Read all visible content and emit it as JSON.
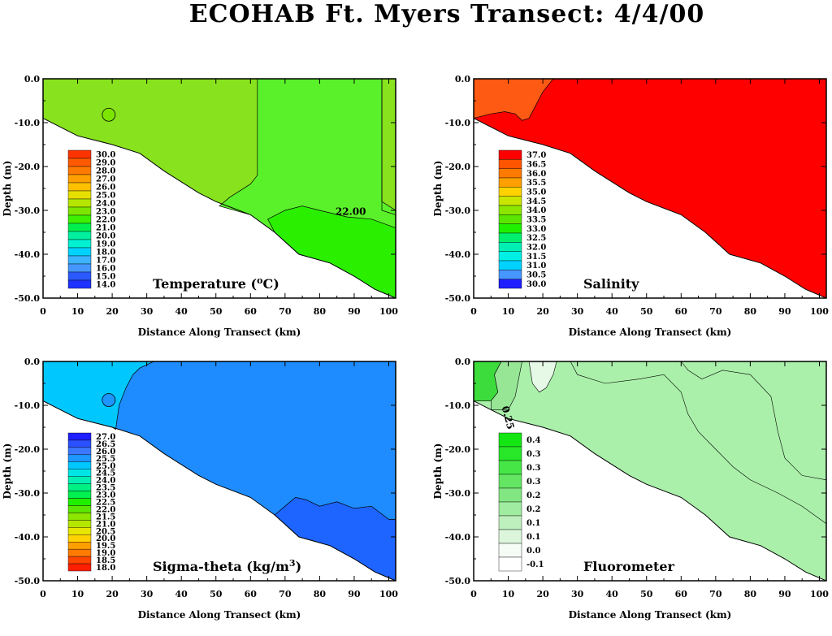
{
  "title": "ECOHAB Ft. Myers Transect: 4/4/00",
  "chart_data": [
    {
      "type": "heatmap",
      "panel_label_main": "Temperature (",
      "panel_label_sup": "o",
      "panel_label_tail": "C)",
      "xlabel": "Distance Along Transect (km)",
      "ylabel": "Depth (m)",
      "xlim": [
        0,
        102
      ],
      "ylim": [
        -50,
        0
      ],
      "xticks": [
        "0",
        "10",
        "20",
        "30",
        "40",
        "50",
        "60",
        "70",
        "80",
        "90",
        "100"
      ],
      "yticks": [
        "0.0",
        "-10.0",
        "-20.0",
        "-30.0",
        "-40.0",
        "-50.0"
      ],
      "legend_levels": [
        "30.0",
        "29.0",
        "28.0",
        "27.0",
        "26.0",
        "25.0",
        "24.0",
        "23.0",
        "22.0",
        "21.0",
        "20.0",
        "19.0",
        "18.0",
        "17.0",
        "16.0",
        "15.0",
        "14.0"
      ],
      "legend_colors": [
        "#ff3300",
        "#ff5a00",
        "#ff7a00",
        "#ffa000",
        "#ffc000",
        "#e6e000",
        "#b4e600",
        "#7ce600",
        "#3cf000",
        "#00f050",
        "#00f0a0",
        "#00f0d2",
        "#00d2ff",
        "#3cb4ff",
        "#4696ff",
        "#2a5aff",
        "#1e32ff"
      ],
      "contour_labels": [
        "22.00"
      ],
      "fill_colors": {
        "main": "#88e21e",
        "band": "#5af02a",
        "deep": "#2af000"
      }
    },
    {
      "type": "heatmap",
      "panel_label": "Salinity",
      "xlabel": "Distance Along Transect (km)",
      "ylabel": "Depth (m)",
      "xlim": [
        0,
        102
      ],
      "ylim": [
        -50,
        0
      ],
      "xticks": [
        "0",
        "10",
        "20",
        "30",
        "40",
        "50",
        "60",
        "70",
        "80",
        "90",
        "100"
      ],
      "yticks": [
        "0.0",
        "-10.0",
        "-20.0",
        "-30.0",
        "-40.0",
        "-50.0"
      ],
      "legend_levels": [
        "37.0",
        "36.5",
        "36.0",
        "35.5",
        "35.0",
        "34.5",
        "34.0",
        "33.5",
        "33.0",
        "32.5",
        "32.0",
        "31.5",
        "31.0",
        "30.5",
        "30.0"
      ],
      "legend_colors": [
        "#ff0000",
        "#ff5500",
        "#ff7a00",
        "#ffa000",
        "#ffd200",
        "#c8e600",
        "#8ce600",
        "#5ae600",
        "#1ef000",
        "#00f06e",
        "#00f0b4",
        "#00f0e6",
        "#00d2ff",
        "#4696ff",
        "#1e1eff"
      ],
      "contour_labels": [],
      "fill_colors": {
        "main": "#ff0000",
        "nearshore": "#ff5a14"
      }
    },
    {
      "type": "heatmap",
      "panel_label_main": "Sigma-theta  (kg/m",
      "panel_label_sup": "3",
      "panel_label_tail": ")",
      "xlabel": "Distance Along Transect (km)",
      "ylabel": "Depth (m)",
      "xlim": [
        0,
        102
      ],
      "ylim": [
        -50,
        0
      ],
      "xticks": [
        "0",
        "10",
        "20",
        "30",
        "40",
        "50",
        "60",
        "70",
        "80",
        "90",
        "100"
      ],
      "yticks": [
        "0.0",
        "-10.0",
        "-20.0",
        "-30.0",
        "-40.0",
        "-50.0"
      ],
      "legend_levels": [
        "27.0",
        "26.5",
        "26.0",
        "25.5",
        "25.0",
        "24.5",
        "24.0",
        "23.5",
        "23.0",
        "22.5",
        "22.0",
        "21.5",
        "21.0",
        "20.5",
        "20.0",
        "19.5",
        "19.0",
        "18.5",
        "18.0"
      ],
      "legend_colors": [
        "#1e1eff",
        "#2a50ff",
        "#3c78ff",
        "#1e96ff",
        "#00c8ff",
        "#00e6e6",
        "#00f0b4",
        "#00f082",
        "#00f050",
        "#1ef000",
        "#5ae600",
        "#8ce600",
        "#b4e600",
        "#e6e600",
        "#ffd200",
        "#ffa000",
        "#ff7a00",
        "#ff4600",
        "#ff1e00"
      ],
      "contour_labels": [],
      "fill_colors": {
        "nearshore": "#00c8ff",
        "main": "#1e8cff",
        "deep": "#1e64ff"
      }
    },
    {
      "type": "heatmap",
      "panel_label": "Fluorometer",
      "xlabel": "Distance Along Transect (km)",
      "ylabel": "Depth (m)",
      "xlim": [
        0,
        102
      ],
      "ylim": [
        -50,
        0
      ],
      "xticks": [
        "0",
        "10",
        "20",
        "30",
        "40",
        "50",
        "60",
        "70",
        "80",
        "90",
        "100"
      ],
      "yticks": [
        "0.0",
        "-10.0",
        "-20.0",
        "-30.0",
        "-40.0",
        "-50.0"
      ],
      "legend_levels": [
        "0.4",
        "0.3",
        "0.3",
        "0.3",
        "0.2",
        "0.2",
        "0.1",
        "0.1",
        "0.0",
        "-0.1"
      ],
      "legend_colors": [
        "#14e614",
        "#28e628",
        "#46e646",
        "#64e664",
        "#82e682",
        "#a0eca0",
        "#bef0be",
        "#dcf6dc",
        "#f5fcf5",
        "#ffffff"
      ],
      "contour_labels": [
        "0.25"
      ],
      "fill_colors": {
        "main": "#aaf0aa",
        "band": "#96e696",
        "high": "#3cdc3c",
        "low": "#e6f8e6"
      }
    }
  ]
}
